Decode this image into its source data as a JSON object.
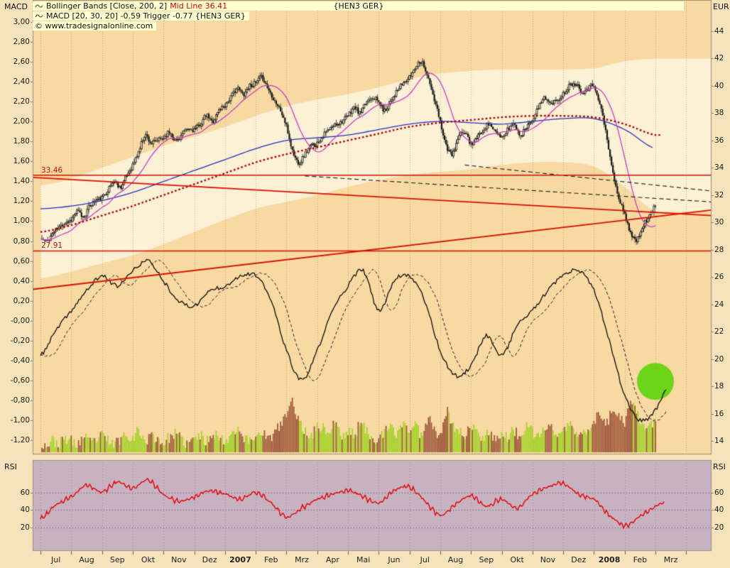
{
  "header": {
    "left_axis_title": "MACD",
    "right_axis_title": "EUR",
    "symbol": "{HEN3 GER}",
    "legend_bollinger_text": "Bollinger Bands [Close, 200, 2]",
    "legend_bollinger_value": "Mid Line 36.41",
    "legend_macd_text": "MACD [20, 30, 20] -0.59 Trigger -0.77 {HEN3 GER}",
    "copyright": "© www.tradesignalonline.com"
  },
  "axes": {
    "macd_ticks": [
      "3,00",
      "2,80",
      "2,60",
      "2,40",
      "2,20",
      "2,00",
      "1,80",
      "1,60",
      "1,40",
      "1,20",
      "1,00",
      "0,80",
      "0,60",
      "0,40",
      "0,20",
      "-0,00",
      "-0,20",
      "-0,40",
      "-0,60",
      "-0,80",
      "-1,00",
      "-1,20"
    ],
    "eur_ticks": [
      "44",
      "42",
      "40",
      "38",
      "36",
      "34",
      "32",
      "30",
      "28",
      "26",
      "24",
      "22",
      "20",
      "18",
      "16",
      "14"
    ],
    "months": [
      "Jul",
      "Aug",
      "Sep",
      "Okt",
      "Nov",
      "Dez",
      "2007",
      "Feb",
      "Mrz",
      "Apr",
      "Mai",
      "Jun",
      "Jul",
      "Aug",
      "Sep",
      "Okt",
      "Nov",
      "Dez",
      "2008",
      "Feb",
      "Mrz"
    ],
    "rsi_title": "RSI",
    "rsi_ticks": [
      "60",
      "40",
      "20"
    ]
  },
  "levels": {
    "resistance": 33.46,
    "resistance_label": "33.46",
    "support": 27.91,
    "support_label": "27.91"
  },
  "chart_data": [
    {
      "type": "candlestick",
      "name": "HEN3 GER daily price",
      "x_range": [
        "Jul 2006",
        "Mrz 2008"
      ],
      "y_unit": "EUR",
      "ylim": [
        14,
        44
      ],
      "close_anchors_weekly": [
        28.8,
        28.6,
        29.2,
        29.6,
        30.0,
        30.2,
        30.8,
        30.4,
        31.2,
        31.6,
        31.8,
        32.4,
        33.0,
        32.6,
        33.4,
        34.2,
        35.2,
        36.4,
        35.8,
        36.0,
        36.2,
        36.6,
        36.0,
        36.4,
        36.8,
        36.8,
        37.2,
        37.8,
        37.4,
        38.2,
        38.6,
        39.2,
        39.8,
        39.4,
        40.0,
        40.2,
        40.6,
        39.8,
        39.0,
        38.2,
        37.0,
        35.2,
        34.4,
        35.0,
        35.6,
        35.8,
        36.4,
        36.8,
        37.2,
        37.4,
        37.8,
        38.4,
        38.0,
        38.8,
        39.2,
        38.8,
        38.2,
        39.0,
        39.6,
        40.2,
        40.6,
        41.4,
        41.8,
        40.6,
        39.0,
        37.4,
        35.6,
        35.0,
        36.2,
        36.6,
        35.8,
        36.2,
        36.8,
        37.2,
        36.6,
        36.2,
        36.8,
        37.2,
        36.4,
        37.0,
        37.6,
        38.4,
        39.2,
        38.6,
        39.0,
        39.4,
        40.0,
        40.2,
        39.6,
        39.8,
        40.0,
        38.6,
        36.4,
        33.8,
        31.8,
        30.6,
        29.2,
        28.7,
        29.8,
        30.4,
        31.2
      ],
      "bollinger": {
        "period": 200,
        "deviation": 2,
        "mid_current": 36.41,
        "mid_monthly": [
          29.3,
          29.8,
          30.5,
          31.2,
          32.0,
          32.8,
          33.6,
          34.4,
          35.0,
          35.5,
          36.0,
          36.5,
          37.0,
          37.3,
          37.5,
          37.7,
          37.8,
          37.8,
          37.7,
          37.2,
          36.4
        ],
        "spread_monthly": [
          3.4,
          3.4,
          3.5,
          3.6,
          3.6,
          3.5,
          3.4,
          3.4,
          3.5,
          3.5,
          3.4,
          3.4,
          3.5,
          3.6,
          3.6,
          3.5,
          3.4,
          3.4,
          3.6,
          4.6,
          5.6
        ]
      },
      "ma_blue_monthly": [
        31.0,
        31.2,
        31.6,
        32.2,
        33.0,
        33.8,
        34.6,
        35.4,
        36.0,
        36.2,
        36.4,
        36.8,
        37.2,
        37.4,
        37.3,
        37.2,
        37.4,
        37.6,
        37.6,
        36.8,
        35.4
      ],
      "ma_magenta_window": 20,
      "trend_lines": [
        {
          "from_month": -0.25,
          "from_value": 33.3,
          "to_month": 21.85,
          "to_value": 30.5,
          "style": "solid",
          "color": "#d81100"
        },
        {
          "from_month": -0.25,
          "from_value": 25.1,
          "to_month": 21.85,
          "to_value": 30.9,
          "style": "solid",
          "color": "#d81100"
        },
        {
          "from_month": 8.6,
          "from_value": 33.4,
          "to_month": 21.85,
          "to_value": 31.5,
          "style": "dashed",
          "color": "#1a1a1a"
        },
        {
          "from_month": 13.8,
          "from_value": 34.2,
          "to_month": 21.85,
          "to_value": 32.3,
          "style": "dashed",
          "color": "#1a1a1a"
        }
      ],
      "h_lines": [
        {
          "value": 33.46,
          "label": "33.46"
        },
        {
          "value": 27.91,
          "label": "27.91"
        }
      ],
      "highlight_circle": {
        "month": 20.0,
        "macd_value": -0.61,
        "radius": 26,
        "color": "#55d400"
      }
    },
    {
      "type": "line",
      "name": "MACD (20,30,20)",
      "current": -0.59,
      "trigger_current": -0.77,
      "ylim": [
        -1.2,
        3.0
      ],
      "trigger_lag_months": 0.4,
      "values_half_monthly": [
        -0.35,
        -0.1,
        0.1,
        0.3,
        0.45,
        0.35,
        0.5,
        0.6,
        0.4,
        0.2,
        0.15,
        0.3,
        0.35,
        0.45,
        0.45,
        0.2,
        -0.3,
        -0.6,
        -0.3,
        0.1,
        0.35,
        0.5,
        0.1,
        0.4,
        0.45,
        0.2,
        -0.3,
        -0.55,
        -0.45,
        -0.15,
        -0.35,
        -0.05,
        0.1,
        0.3,
        0.45,
        0.5,
        0.3,
        -0.2,
        -0.75,
        -1.0,
        -0.9,
        -0.6
      ]
    },
    {
      "type": "bar",
      "name": "Volume",
      "ylim": [
        0,
        100
      ],
      "values_weekly": [
        12,
        8,
        15,
        10,
        18,
        14,
        9,
        20,
        12,
        16,
        22,
        15,
        10,
        18,
        25,
        20,
        30,
        15,
        22,
        18,
        12,
        20,
        25,
        15,
        10,
        18,
        22,
        14,
        28,
        20,
        15,
        25,
        35,
        20,
        15,
        22,
        30,
        18,
        25,
        40,
        55,
        75,
        45,
        30,
        25,
        35,
        35,
        28,
        45,
        20,
        30,
        25,
        40,
        30,
        22,
        18,
        28,
        35,
        25,
        45,
        30,
        38,
        25,
        50,
        35,
        28,
        60,
        40,
        30,
        25,
        35,
        28,
        22,
        30,
        18,
        25,
        20,
        30,
        22,
        35,
        28,
        22,
        35,
        35,
        25,
        30,
        40,
        28,
        22,
        35,
        45,
        55,
        40,
        65,
        50,
        45,
        70,
        55,
        40,
        35,
        45
      ]
    },
    {
      "type": "line",
      "name": "RSI",
      "ylim": [
        0,
        100
      ],
      "grid_lines": [
        20,
        40,
        60
      ],
      "values_half_monthly": [
        30,
        45,
        55,
        68,
        60,
        72,
        65,
        74,
        58,
        50,
        55,
        62,
        58,
        52,
        60,
        48,
        32,
        42,
        52,
        58,
        62,
        55,
        48,
        62,
        66,
        50,
        34,
        46,
        56,
        44,
        52,
        42,
        58,
        66,
        70,
        58,
        52,
        34,
        22,
        32,
        44,
        52,
        53
      ]
    }
  ],
  "colors": {
    "bg_outer": "#f6e3bc",
    "plot_bg": "#f8d9a2",
    "boll_fill": "#fcf0d5",
    "legend_bg": "#ffffd2",
    "rsi_bg": "#c7b2c2",
    "candle_up": "#f4edd4",
    "candle_down": "#141a12",
    "ma_blue": "#2733be",
    "ma_magenta": "#c93fc9",
    "mid_red": "#a80000",
    "macd_line": "#0d0d0d",
    "trigger_line": "#222222",
    "vol_green": "#a6d32c",
    "vol_red": "#a05a3e",
    "rsi_line": "#e60000",
    "level_red": "#cc1100",
    "circle_green": "#55d400"
  }
}
